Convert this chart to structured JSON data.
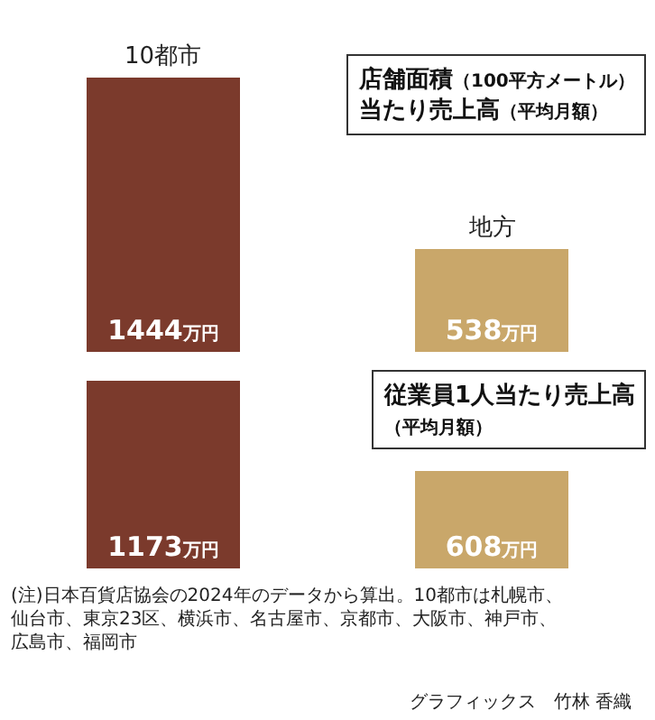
{
  "chart_data": [
    {
      "type": "bar",
      "title": "店舗面積（100平方メートル）当たり売上高（平均月額）",
      "categories": [
        "10都市",
        "地方"
      ],
      "values": [
        1444,
        538
      ],
      "colors": [
        "#7b3a2c",
        "#c9a76a"
      ],
      "value_labels": [
        "1444万円",
        "538万円"
      ]
    },
    {
      "type": "bar",
      "title": "従業員1人当たり売上高（平均月額）",
      "categories": [
        null,
        null
      ],
      "values": [
        1173,
        608
      ],
      "colors": [
        "#7b3a2c",
        "#c9a76a"
      ],
      "value_labels": [
        "1173万円",
        "608万円"
      ],
      "annotations": [
        "(注)日本百貨店協会の2024年のデータから算出。10都市は札幌市、仙台市、東京23区、横浜市、名古屋市、京都市、大阪市、神戸市、広島市、福岡市",
        "グラフィックス　竹林 香織"
      ]
    }
  ]
}
